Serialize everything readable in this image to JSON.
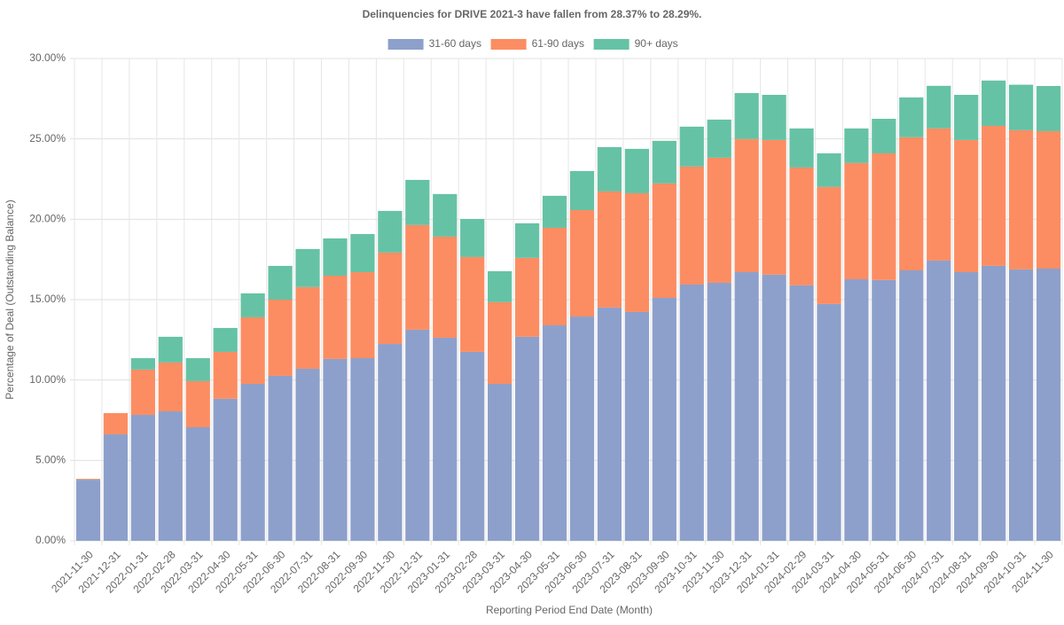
{
  "chart_data": {
    "type": "stacked_bar",
    "title": "Delinquencies for DRIVE 2021-3 have fallen from 28.37% to 28.29%.",
    "x_label": "Reporting Period End Date (Month)",
    "y_label": "Percentage of Deal (Outstanding Balance)",
    "categories": [
      "2021-11-30",
      "2021-12-31",
      "2022-01-31",
      "2022-02-28",
      "2022-03-31",
      "2022-04-30",
      "2022-05-31",
      "2022-06-30",
      "2022-07-31",
      "2022-08-31",
      "2022-09-30",
      "2022-11-30",
      "2022-12-31",
      "2023-01-31",
      "2023-02-28",
      "2023-03-31",
      "2023-04-30",
      "2023-05-31",
      "2023-06-30",
      "2023-07-31",
      "2023-08-31",
      "2023-09-30",
      "2023-10-31",
      "2023-11-30",
      "2023-12-31",
      "2024-01-31",
      "2024-02-29",
      "2024-03-31",
      "2024-04-30",
      "2024-05-31",
      "2024-06-30",
      "2024-07-31",
      "2024-08-31",
      "2024-09-30",
      "2024-10-31",
      "2024-11-30"
    ],
    "series": [
      {
        "name": "31-60 days",
        "color": "#8da0cb",
        "values": [
          3.8,
          6.62,
          7.83,
          8.05,
          7.06,
          8.83,
          9.76,
          10.26,
          10.7,
          11.31,
          11.36,
          12.24,
          13.13,
          12.63,
          11.75,
          9.76,
          12.69,
          13.4,
          13.95,
          14.51,
          14.23,
          15.11,
          15.94,
          16.05,
          16.71,
          16.55,
          15.89,
          14.73,
          16.27,
          16.22,
          16.82,
          17.43,
          16.71,
          17.1,
          16.88,
          16.93
        ]
      },
      {
        "name": "61-90 days",
        "color": "#fc8d62",
        "values": [
          0.05,
          1.32,
          2.82,
          3.04,
          2.87,
          2.92,
          4.14,
          4.74,
          5.08,
          5.18,
          5.35,
          5.69,
          6.51,
          6.29,
          5.9,
          5.08,
          4.91,
          6.07,
          6.62,
          7.22,
          7.39,
          7.12,
          7.34,
          7.78,
          8.28,
          8.38,
          7.33,
          7.28,
          7.23,
          7.88,
          8.28,
          8.22,
          8.22,
          8.71,
          8.66,
          8.55
        ]
      },
      {
        "name": "90+ days",
        "color": "#66c2a5",
        "values": [
          0.01,
          0,
          0.71,
          1.6,
          1.43,
          1.49,
          1.49,
          2.1,
          2.37,
          2.32,
          2.37,
          2.59,
          2.81,
          2.65,
          2.37,
          1.93,
          2.15,
          1.99,
          2.43,
          2.76,
          2.76,
          2.65,
          2.48,
          2.37,
          2.86,
          2.81,
          2.43,
          2.09,
          2.15,
          2.15,
          2.48,
          2.65,
          2.81,
          2.82,
          2.83,
          2.81
        ]
      }
    ],
    "ylim": [
      0,
      30
    ],
    "yticks": [
      {
        "value": 0,
        "label": "0.00%"
      },
      {
        "value": 5,
        "label": "5.00%"
      },
      {
        "value": 10,
        "label": "10.00%"
      },
      {
        "value": 15,
        "label": "15.00%"
      },
      {
        "value": 20,
        "label": "20.00%"
      },
      {
        "value": 25,
        "label": "25.00%"
      },
      {
        "value": 30,
        "label": "30.00%"
      }
    ],
    "grid": true,
    "legend": "top"
  }
}
